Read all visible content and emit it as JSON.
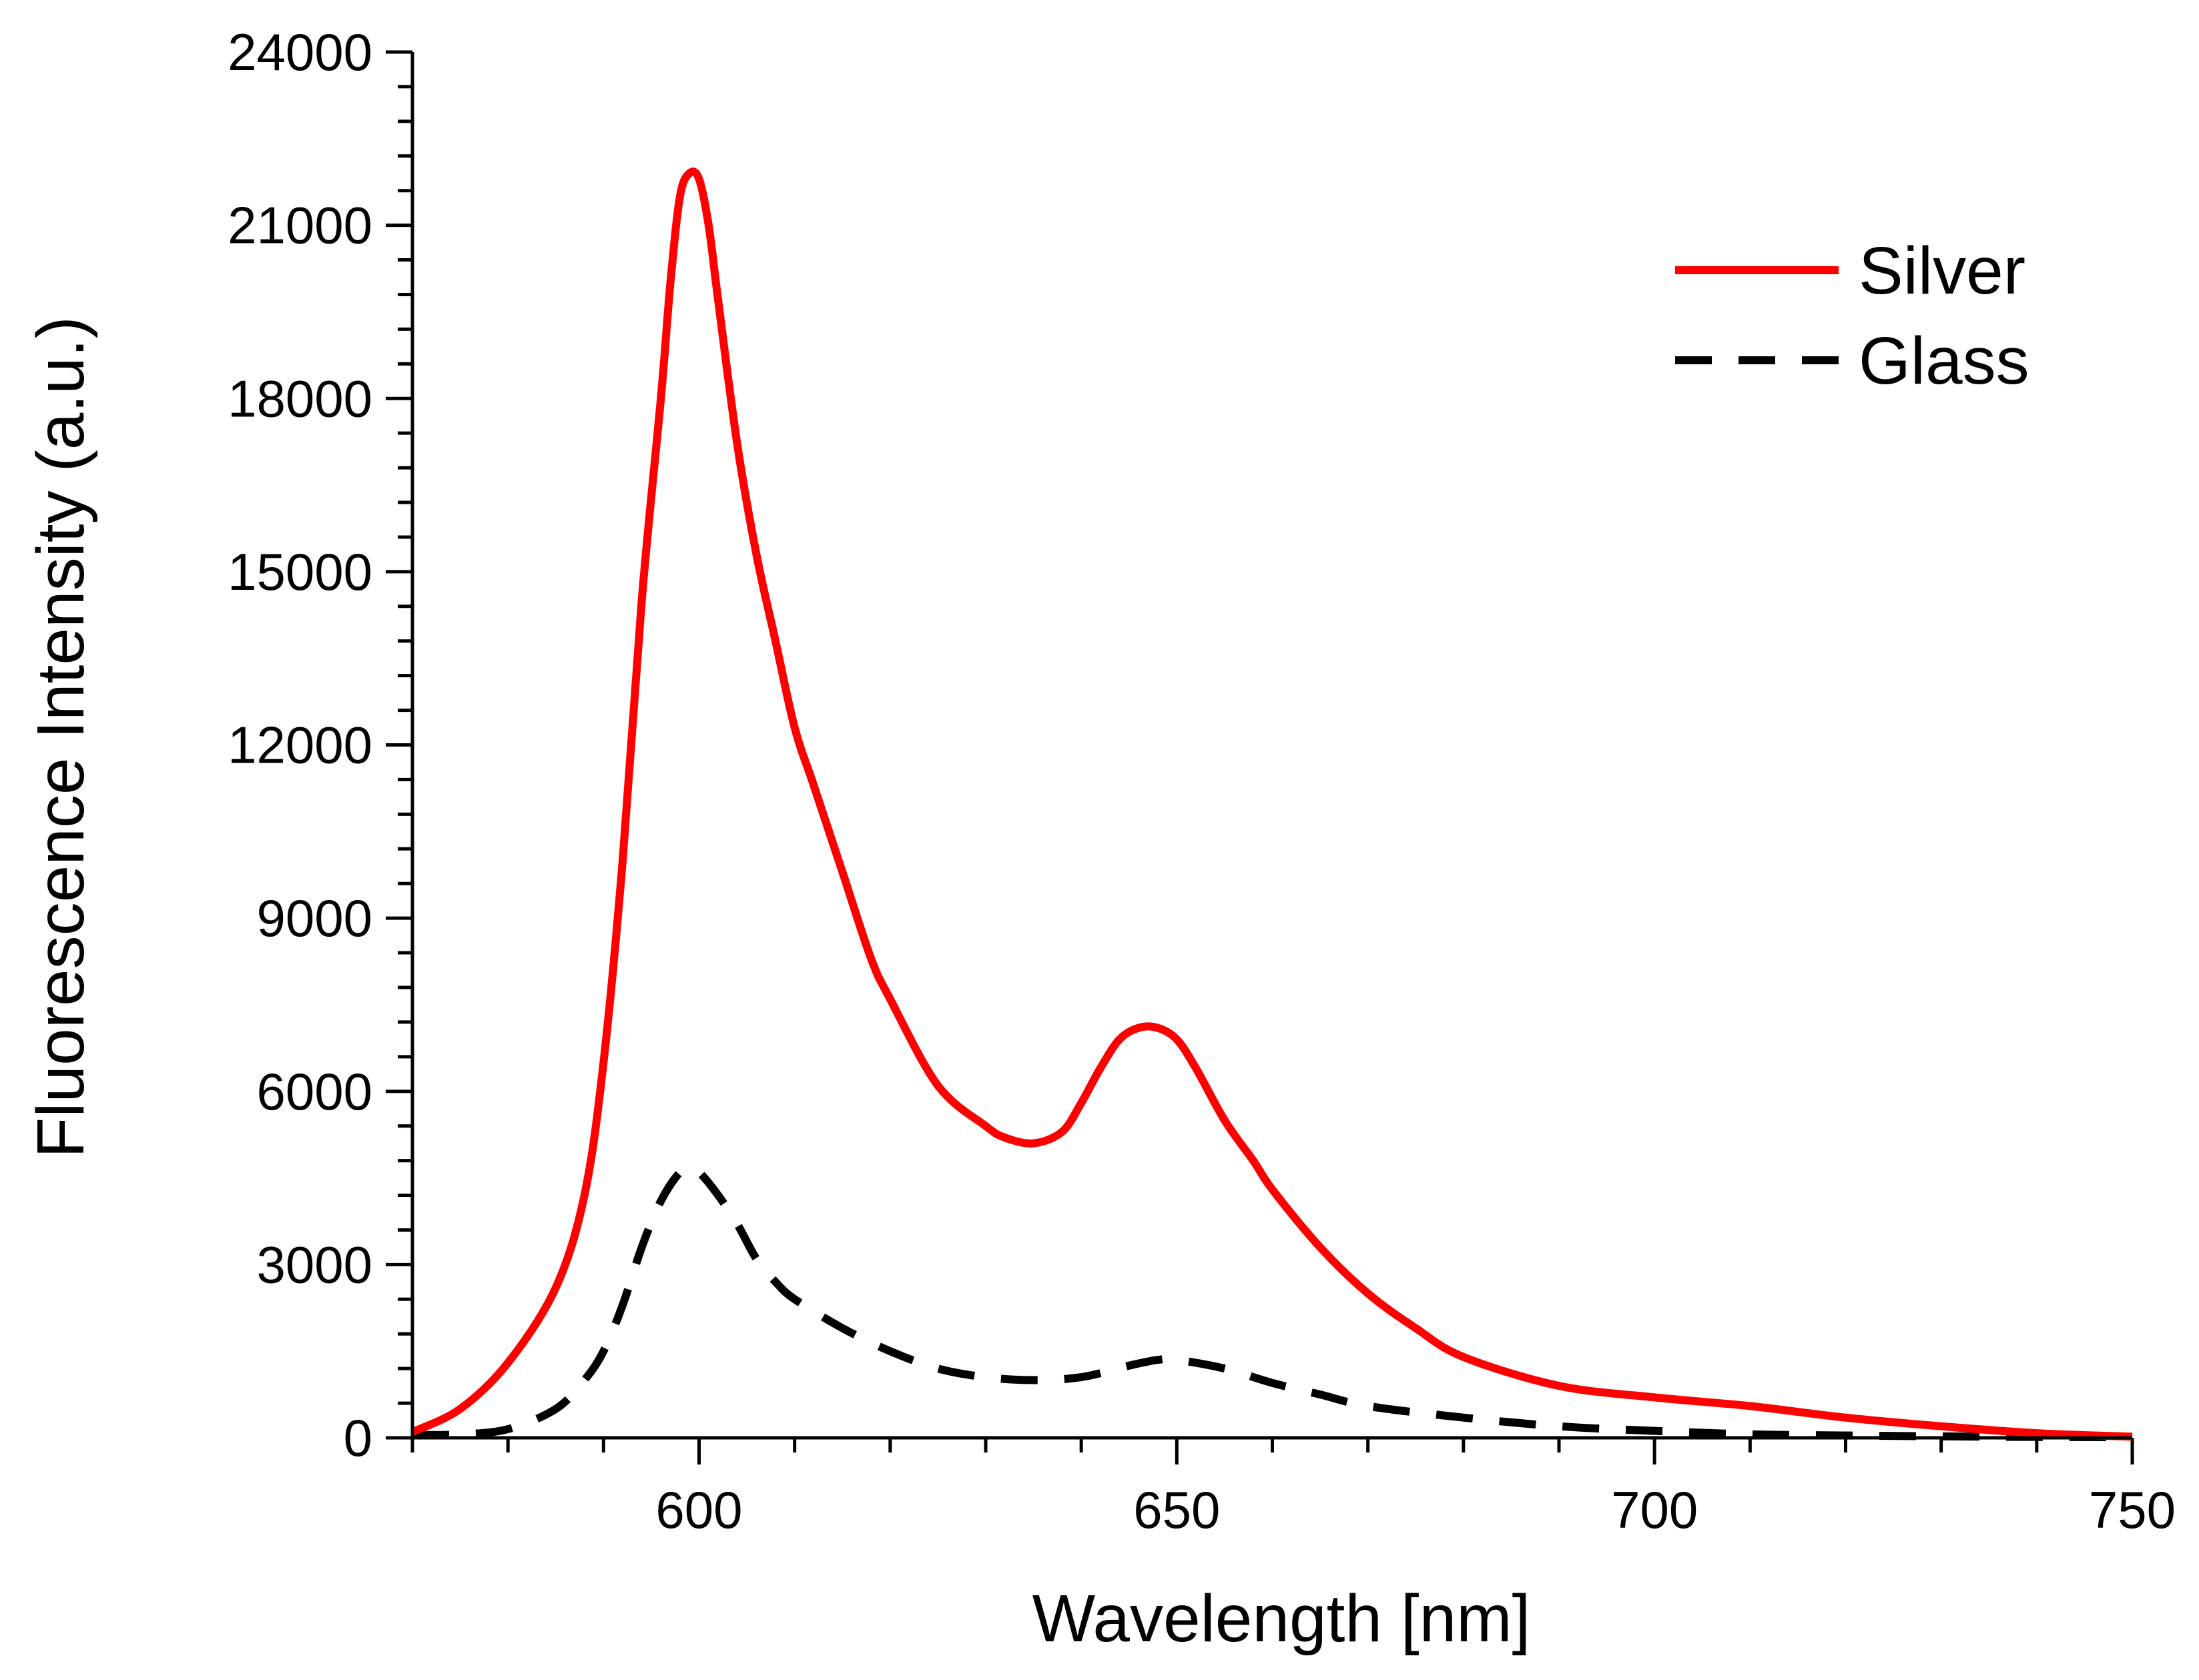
{
  "chart_data": {
    "type": "line",
    "title": "",
    "xlabel": "Wavelength [nm]",
    "ylabel": "Fluorescence Intensity (a.u.)",
    "xlim": [
      570,
      750
    ],
    "ylim": [
      0,
      24000
    ],
    "x_ticks": [
      600,
      650,
      700,
      750
    ],
    "x_tick_labels": [
      "600",
      "650",
      "700",
      "750"
    ],
    "y_ticks": [
      0,
      3000,
      6000,
      9000,
      12000,
      15000,
      18000,
      21000,
      24000
    ],
    "y_tick_labels": [
      "0",
      "3000",
      "6000",
      "9000",
      "12000",
      "15000",
      "18000",
      "21000",
      "24000"
    ],
    "legend": {
      "position": "top-right",
      "entries": [
        "Silver",
        "Glass"
      ]
    },
    "series": [
      {
        "name": "Silver",
        "color": "#ff0000",
        "style": "solid",
        "x": [
          570,
          575,
          580,
          585,
          588,
          590,
          592,
          594,
          596,
          597,
          598,
          599,
          600,
          601,
          602,
          604,
          606,
          608,
          610,
          612,
          615,
          618,
          620,
          625,
          630,
          632,
          635,
          638,
          640,
          642,
          644,
          646,
          648,
          650,
          652,
          655,
          658,
          660,
          665,
          670,
          675,
          680,
          690,
          700,
          710,
          720,
          730,
          740,
          750
        ],
        "values": [
          100,
          500,
          1300,
          2600,
          4200,
          6500,
          10000,
          14500,
          18000,
          20000,
          21500,
          21900,
          21800,
          21000,
          19700,
          17200,
          15300,
          13800,
          12300,
          11300,
          9800,
          8300,
          7600,
          6100,
          5400,
          5200,
          5100,
          5300,
          5800,
          6400,
          6900,
          7100,
          7100,
          6900,
          6400,
          5500,
          4800,
          4300,
          3300,
          2500,
          1900,
          1400,
          900,
          700,
          550,
          350,
          200,
          80,
          20
        ]
      },
      {
        "name": "Glass",
        "color": "#000000",
        "style": "dashed",
        "x": [
          570,
          575,
          580,
          585,
          588,
          590,
          592,
          594,
          596,
          598,
          599,
          600,
          602,
          604,
          606,
          608,
          610,
          615,
          620,
          625,
          630,
          635,
          640,
          645,
          648,
          650,
          655,
          660,
          665,
          670,
          680,
          690,
          700,
          710,
          720,
          730,
          740,
          750
        ],
        "values": [
          50,
          60,
          150,
          500,
          1000,
          1500,
          2300,
          3300,
          4100,
          4600,
          4650,
          4600,
          4200,
          3700,
          3100,
          2700,
          2400,
          1900,
          1500,
          1200,
          1050,
          1000,
          1050,
          1250,
          1350,
          1350,
          1200,
          950,
          750,
          550,
          350,
          200,
          120,
          60,
          40,
          25,
          15,
          10
        ]
      }
    ]
  }
}
